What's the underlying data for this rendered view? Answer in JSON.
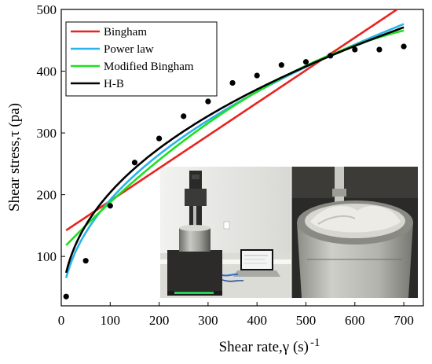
{
  "chart_data": {
    "type": "scatter",
    "xlabel": "Shear rate,γ (s) ",
    "xlabel_sup": "-1",
    "ylabel": "Shear stress,τ (pa)",
    "xlim": [
      0,
      740
    ],
    "ylim": [
      20,
      500
    ],
    "xticks": [
      0,
      100,
      200,
      300,
      400,
      500,
      600,
      700
    ],
    "yticks": [
      100,
      200,
      300,
      400,
      500
    ],
    "grid": false,
    "legend_position": "top-left",
    "points": {
      "x": [
        10,
        50,
        100,
        150,
        200,
        250,
        300,
        350,
        400,
        450,
        500,
        550,
        600,
        650,
        700
      ],
      "y": [
        35,
        93,
        182,
        252,
        291,
        327,
        351,
        381,
        393,
        410,
        415,
        425,
        435,
        435,
        440
      ]
    },
    "series": [
      {
        "name": "Bingham",
        "color": "#e8231f",
        "model": "linear",
        "params": {
          "tau0": 137,
          "eta": 0.529
        }
      },
      {
        "name": "Power law",
        "color": "#2ab4ea",
        "model": "power",
        "params": {
          "k": 22.2,
          "n": 0.468
        }
      },
      {
        "name": "Modified Bingham",
        "color": "#1ee01e",
        "model": "quadratic",
        "params": {
          "tau0": 110,
          "eta": 0.82,
          "c": -0.000445
        }
      },
      {
        "name": "H-B",
        "color": "#000000",
        "model": "herschel-bulkley",
        "params": {
          "tau0": -5,
          "k": 29.6,
          "n": 0.424
        }
      }
    ]
  },
  "inset": {
    "left_photo": "rheometer-with-laptop",
    "right_photo": "mixing-vessel-closeup"
  }
}
